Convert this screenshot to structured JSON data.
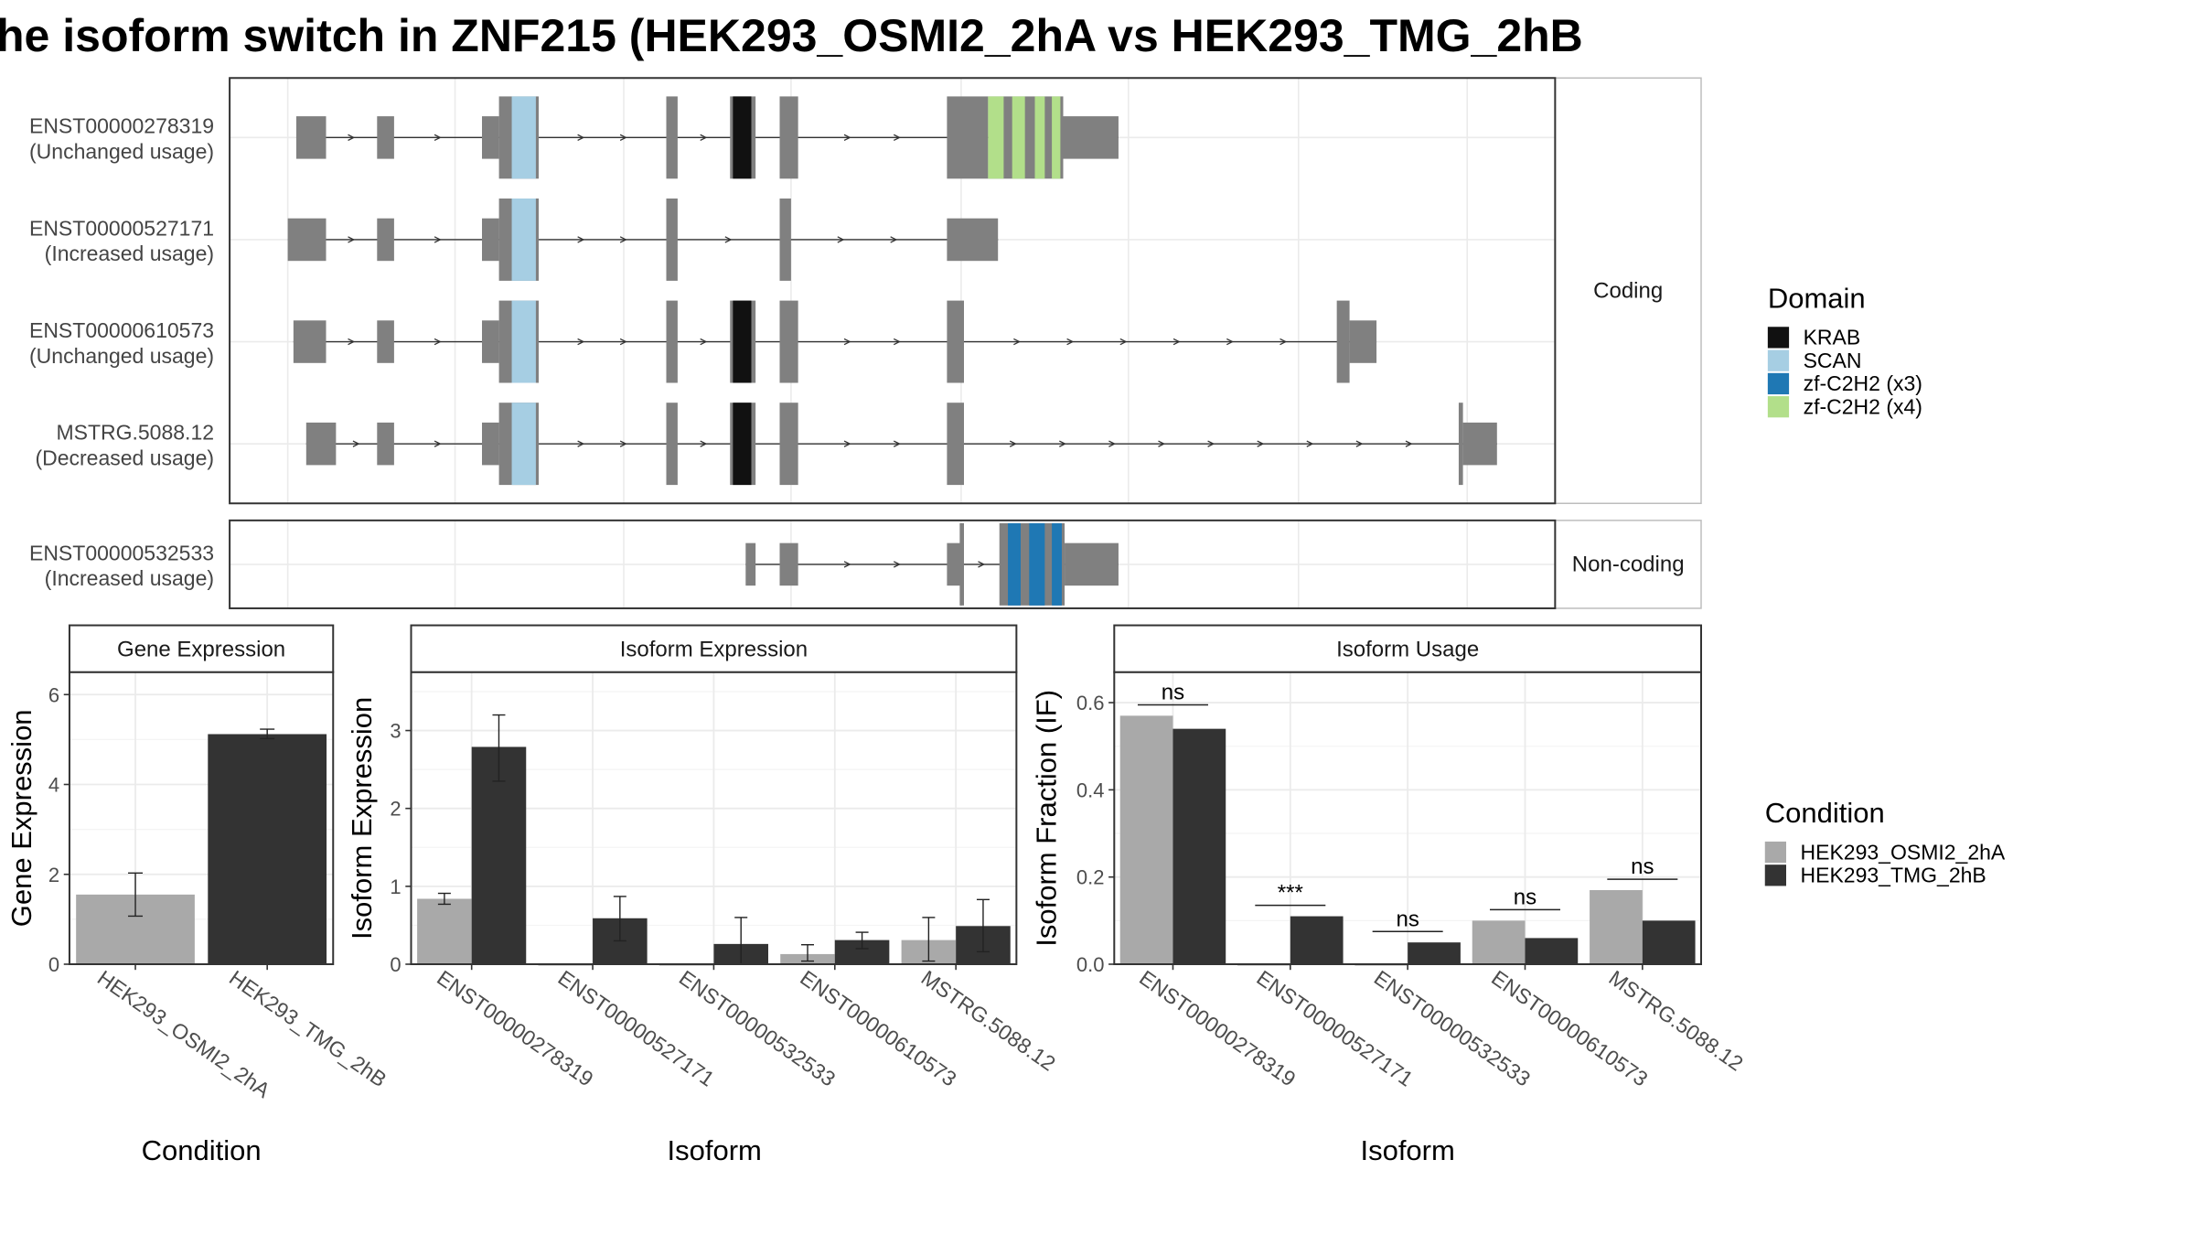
{
  "title": "he isoform switch in ZNF215 (HEK293_OSMI2_2hA vs HEK293_TMG_2hB",
  "colors": {
    "exon": "#808080",
    "KRAB": "#111111",
    "SCAN": "#a6cee3",
    "zf3": "#1f78b4",
    "zf4": "#b2df8a",
    "cond1": "#a9a9a9",
    "cond2": "#333333",
    "grid": "#ebebeb",
    "strip": "#d9d9d9"
  },
  "structure": {
    "strip_coding": "Coding",
    "strip_noncoding": "Non-coding",
    "transcripts": [
      {
        "id": "ENST00000278319",
        "usage": "(Unchanged usage)",
        "group": "coding",
        "exons": [
          [
            209,
            230,
            "n"
          ],
          [
            266,
            278,
            "n"
          ],
          [
            340,
            352,
            "n"
          ],
          [
            352,
            380,
            "c"
          ],
          [
            470,
            478,
            "c"
          ],
          [
            515,
            533,
            "c"
          ],
          [
            550,
            563,
            "c"
          ],
          [
            668,
            697,
            "c"
          ],
          [
            697,
            750,
            "c"
          ],
          [
            750,
            789,
            "n"
          ]
        ],
        "domains": [
          [
            361,
            378,
            "SCAN"
          ],
          [
            517,
            530,
            "KRAB"
          ],
          [
            697,
            708,
            "zf4"
          ],
          [
            714,
            723,
            "zf4"
          ],
          [
            730,
            737,
            "zf4"
          ],
          [
            742,
            748,
            "zf4"
          ]
        ]
      },
      {
        "id": "ENST00000527171",
        "usage": "(Increased usage)",
        "group": "coding",
        "exons": [
          [
            203,
            230,
            "n"
          ],
          [
            266,
            278,
            "n"
          ],
          [
            340,
            352,
            "n"
          ],
          [
            352,
            380,
            "c"
          ],
          [
            470,
            478,
            "c"
          ],
          [
            550,
            558,
            "c"
          ],
          [
            550,
            556,
            "n"
          ],
          [
            668,
            704,
            "n"
          ]
        ],
        "domains": [
          [
            361,
            378,
            "SCAN"
          ]
        ]
      },
      {
        "id": "ENST00000610573",
        "usage": "(Unchanged usage)",
        "group": "coding",
        "exons": [
          [
            207,
            230,
            "n"
          ],
          [
            266,
            278,
            "n"
          ],
          [
            340,
            352,
            "n"
          ],
          [
            352,
            380,
            "c"
          ],
          [
            470,
            478,
            "c"
          ],
          [
            515,
            533,
            "c"
          ],
          [
            550,
            563,
            "c"
          ],
          [
            668,
            680,
            "c"
          ],
          [
            943,
            952,
            "c"
          ],
          [
            952,
            971,
            "n"
          ]
        ],
        "domains": [
          [
            361,
            378,
            "SCAN"
          ],
          [
            517,
            530,
            "KRAB"
          ]
        ]
      },
      {
        "id": "MSTRG.5088.12",
        "usage": "(Decreased usage)",
        "group": "coding",
        "exons": [
          [
            216,
            237,
            "n"
          ],
          [
            266,
            278,
            "n"
          ],
          [
            340,
            352,
            "n"
          ],
          [
            352,
            380,
            "c"
          ],
          [
            470,
            478,
            "c"
          ],
          [
            515,
            533,
            "c"
          ],
          [
            550,
            563,
            "c"
          ],
          [
            668,
            680,
            "c"
          ],
          [
            1029,
            1032,
            "c"
          ],
          [
            1032,
            1056,
            "n"
          ]
        ],
        "domains": [
          [
            361,
            378,
            "SCAN"
          ],
          [
            517,
            530,
            "KRAB"
          ]
        ]
      },
      {
        "id": "ENST00000532533",
        "usage": "(Increased usage)",
        "group": "noncoding",
        "exons": [
          [
            526,
            533,
            "n"
          ],
          [
            550,
            563,
            "n"
          ],
          [
            668,
            680,
            "n"
          ],
          [
            677,
            680,
            "c"
          ],
          [
            705,
            751,
            "c"
          ],
          [
            751,
            789,
            "n"
          ]
        ],
        "domains": [
          [
            711,
            720,
            "zf3"
          ],
          [
            726,
            737,
            "zf3"
          ],
          [
            742,
            749,
            "zf3"
          ]
        ]
      }
    ]
  },
  "domain_legend": {
    "title": "Domain",
    "items": [
      {
        "label": "KRAB",
        "key": "KRAB"
      },
      {
        "label": "SCAN",
        "key": "SCAN"
      },
      {
        "label": "zf-C2H2 (x3)",
        "key": "zf3"
      },
      {
        "label": "zf-C2H2 (x4)",
        "key": "zf4"
      }
    ]
  },
  "condition_legend": {
    "title": "Condition",
    "items": [
      {
        "label": "HEK293_OSMI2_2hA",
        "key": "cond1"
      },
      {
        "label": "HEK293_TMG_2hB",
        "key": "cond2"
      }
    ]
  },
  "chart_data": [
    {
      "type": "bar",
      "title": "Gene Expression",
      "xlabel": "Condition",
      "ylabel": "Gene Expression",
      "ylim": [
        0,
        6.5
      ],
      "yticks": [
        "0",
        "2",
        "4",
        "6"
      ],
      "categories": [
        "HEK293_OSMI2_2hA",
        "HEK293_TMG_2hB"
      ],
      "values": [
        1.55,
        5.12
      ],
      "errors": [
        [
          1.07,
          2.03
        ],
        [
          5.02,
          5.23
        ]
      ]
    },
    {
      "type": "bar",
      "title": "Isoform Expression",
      "xlabel": "Isoform",
      "ylabel": "Isoform Expression",
      "ylim": [
        0,
        3.75
      ],
      "yticks": [
        "0",
        "1",
        "2",
        "3"
      ],
      "categories": [
        "ENST00000278319",
        "ENST00000527171",
        "ENST00000532533",
        "ENST00000610573",
        "MSTRG.5088.12"
      ],
      "series": [
        {
          "name": "HEK293_OSMI2_2hA",
          "values": [
            0.84,
            0.0,
            0.0,
            0.13,
            0.31
          ],
          "errors": [
            [
              0.77,
              0.91
            ],
            [
              0.0,
              0.0
            ],
            [
              0.0,
              0.0
            ],
            [
              0.04,
              0.25
            ],
            [
              0.04,
              0.6
            ]
          ]
        },
        {
          "name": "HEK293_TMG_2hB",
          "values": [
            2.79,
            0.59,
            0.26,
            0.31,
            0.49
          ],
          "errors": [
            [
              2.35,
              3.2
            ],
            [
              0.3,
              0.87
            ],
            [
              0.0,
              0.6
            ],
            [
              0.2,
              0.41
            ],
            [
              0.16,
              0.83
            ]
          ]
        }
      ]
    },
    {
      "type": "bar",
      "title": "Isoform Usage",
      "xlabel": "Isoform",
      "ylabel": "Isoform Fraction (IF)",
      "ylim": [
        0,
        0.67
      ],
      "yticks": [
        "0.0",
        "0.2",
        "0.4",
        "0.6"
      ],
      "categories": [
        "ENST00000278319",
        "ENST00000527171",
        "ENST00000532533",
        "ENST00000610573",
        "MSTRG.5088.12"
      ],
      "series": [
        {
          "name": "HEK293_OSMI2_2hA",
          "values": [
            0.57,
            0.0,
            0.0,
            0.1,
            0.17
          ]
        },
        {
          "name": "HEK293_TMG_2hB",
          "values": [
            0.54,
            0.11,
            0.05,
            0.06,
            0.1
          ]
        }
      ],
      "significance": [
        "ns",
        "***",
        "ns",
        "ns",
        "ns"
      ]
    }
  ]
}
